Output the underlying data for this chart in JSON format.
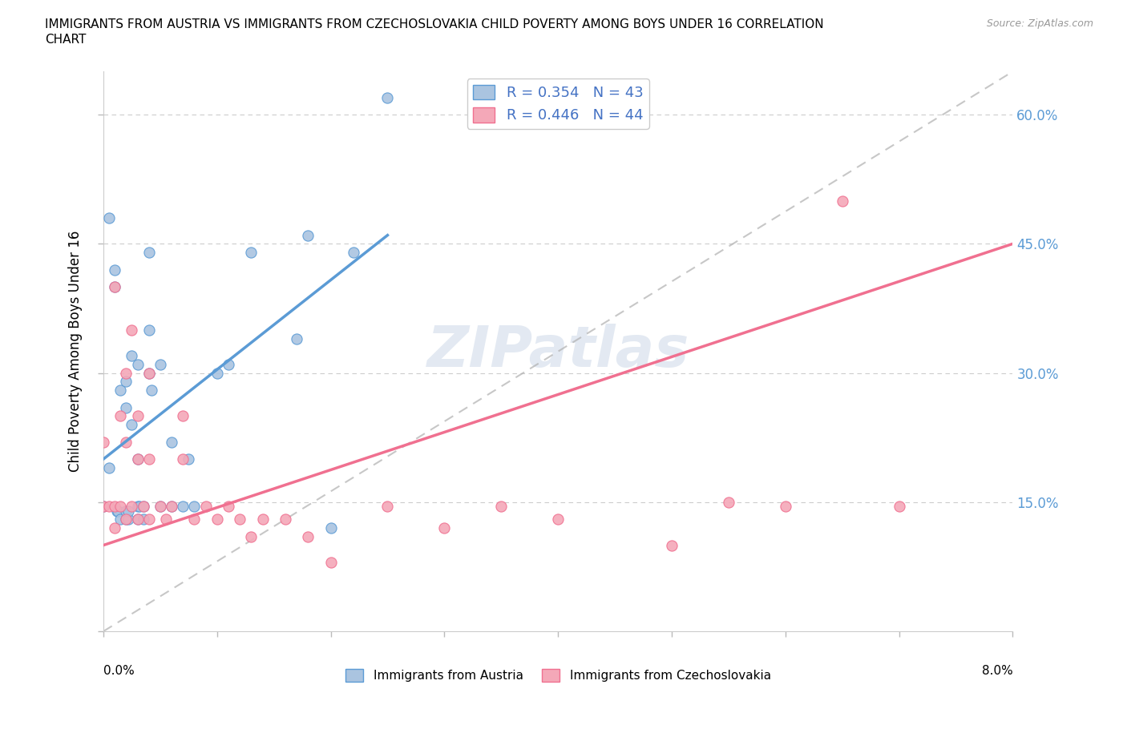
{
  "title": "IMMIGRANTS FROM AUSTRIA VS IMMIGRANTS FROM CZECHOSLOVAKIA CHILD POVERTY AMONG BOYS UNDER 16 CORRELATION\nCHART",
  "source": "Source: ZipAtlas.com",
  "ylabel": "Child Poverty Among Boys Under 16",
  "right_yticks": [
    0.0,
    0.15,
    0.3,
    0.45,
    0.6
  ],
  "right_yticklabels": [
    "",
    "15.0%",
    "30.0%",
    "45.0%",
    "60.0%"
  ],
  "xlim": [
    0.0,
    0.08
  ],
  "ylim": [
    0.0,
    0.65
  ],
  "austria_R": 0.354,
  "austria_N": 43,
  "czech_R": 0.446,
  "czech_N": 44,
  "austria_color": "#aac4e0",
  "czech_color": "#f4a8b8",
  "trend_austria_color": "#5b9bd5",
  "trend_czech_color": "#f07090",
  "diag_color": "#b0b0b0",
  "legend_color": "#4472c4",
  "watermark": "ZIPatlas",
  "austria_x": [
    0.0005,
    0.001,
    0.001,
    0.0012,
    0.0013,
    0.0015,
    0.0015,
    0.002,
    0.002,
    0.002,
    0.002,
    0.0022,
    0.0022,
    0.0025,
    0.0025,
    0.003,
    0.003,
    0.003,
    0.003,
    0.0032,
    0.0035,
    0.0035,
    0.004,
    0.004,
    0.004,
    0.0042,
    0.005,
    0.005,
    0.006,
    0.006,
    0.007,
    0.0075,
    0.008,
    0.01,
    0.011,
    0.013,
    0.017,
    0.018,
    0.02,
    0.022,
    0.025,
    0.0005,
    0.0
  ],
  "austria_y": [
    0.48,
    0.4,
    0.42,
    0.14,
    0.14,
    0.13,
    0.28,
    0.13,
    0.14,
    0.26,
    0.29,
    0.13,
    0.14,
    0.24,
    0.32,
    0.13,
    0.145,
    0.2,
    0.31,
    0.145,
    0.13,
    0.145,
    0.3,
    0.35,
    0.44,
    0.28,
    0.145,
    0.31,
    0.145,
    0.22,
    0.145,
    0.2,
    0.145,
    0.3,
    0.31,
    0.44,
    0.34,
    0.46,
    0.12,
    0.44,
    0.62,
    0.19,
    0.145
  ],
  "czech_x": [
    0.0,
    0.0,
    0.0005,
    0.001,
    0.001,
    0.001,
    0.0015,
    0.0015,
    0.002,
    0.002,
    0.002,
    0.0025,
    0.0025,
    0.003,
    0.003,
    0.003,
    0.0035,
    0.004,
    0.004,
    0.004,
    0.005,
    0.0055,
    0.006,
    0.007,
    0.007,
    0.008,
    0.009,
    0.01,
    0.011,
    0.012,
    0.013,
    0.014,
    0.016,
    0.018,
    0.02,
    0.025,
    0.03,
    0.035,
    0.04,
    0.05,
    0.055,
    0.06,
    0.065,
    0.07
  ],
  "czech_y": [
    0.145,
    0.22,
    0.145,
    0.12,
    0.145,
    0.4,
    0.25,
    0.145,
    0.13,
    0.22,
    0.3,
    0.145,
    0.35,
    0.13,
    0.2,
    0.25,
    0.145,
    0.13,
    0.2,
    0.3,
    0.145,
    0.13,
    0.145,
    0.2,
    0.25,
    0.13,
    0.145,
    0.13,
    0.145,
    0.13,
    0.11,
    0.13,
    0.13,
    0.11,
    0.08,
    0.145,
    0.12,
    0.145,
    0.13,
    0.1,
    0.15,
    0.145,
    0.5,
    0.145
  ],
  "austria_trend_x0": 0.0,
  "austria_trend_y0": 0.2,
  "austria_trend_x1": 0.025,
  "austria_trend_y1": 0.46,
  "czech_trend_x0": 0.0,
  "czech_trend_y0": 0.1,
  "czech_trend_x1": 0.08,
  "czech_trend_y1": 0.45
}
